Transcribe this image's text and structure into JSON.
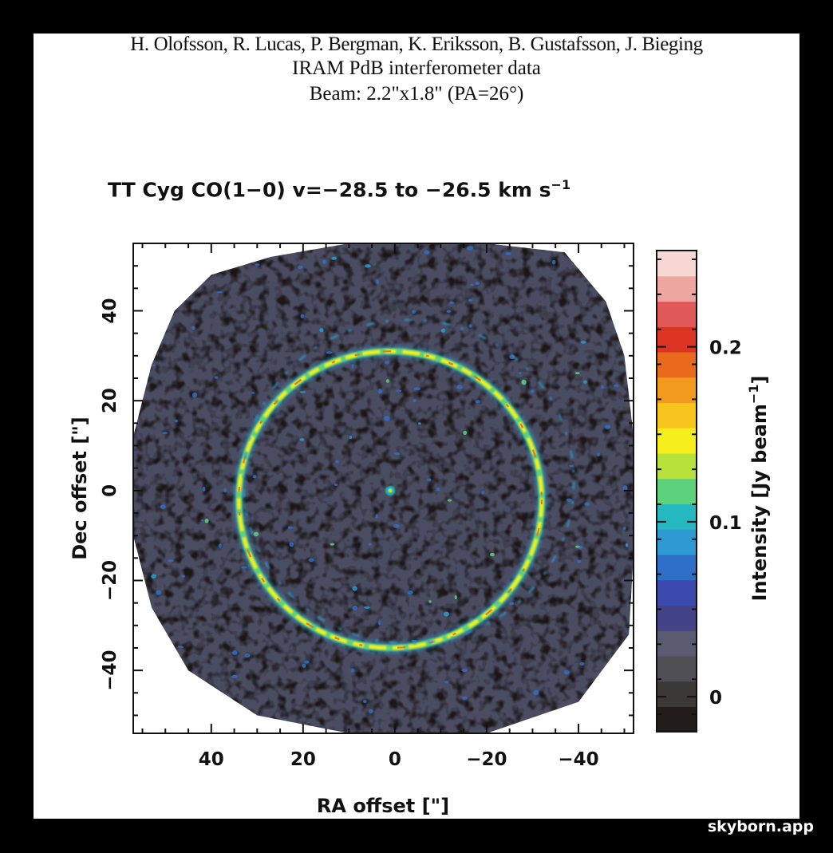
{
  "header": {
    "credit": "H. Olofsson, R. Lucas, P. Bergman, K. Eriksson, B. Gustafsson, J. Bieging",
    "instrument": "IRAM PdB interferometer data",
    "beam": "Beam: 2.2\"x1.8\" (PA=26°)"
  },
  "watermark": "skyborn.app",
  "chart_data": {
    "type": "heatmap",
    "title": "TT Cyg  CO(1−0)  v=−28.5 to −26.5 km s",
    "title_superscript": "−1",
    "xlabel": "RA offset  [\"]",
    "ylabel": "Dec offset  [\"]",
    "xlim": [
      57,
      -52
    ],
    "ylim": [
      -54,
      55
    ],
    "x_ticks": [
      40,
      20,
      0,
      -20,
      -40
    ],
    "x_tick_labels": [
      "40",
      "20",
      "0",
      "−20",
      "−40"
    ],
    "y_ticks": [
      40,
      20,
      0,
      -20,
      -40
    ],
    "y_tick_labels": [
      "40",
      "20",
      "0",
      "−20",
      "−40"
    ],
    "colorbar": {
      "label": "Intensity [Jy beam",
      "label_superscript": "−1",
      "label_suffix": "]",
      "range": [
        -0.02,
        0.255
      ],
      "ticks": [
        0,
        0.1,
        0.2
      ],
      "tick_labels": [
        "0",
        "0.1",
        "0.2"
      ],
      "colors": [
        "#221c1c",
        "#3b3838",
        "#4f4f55",
        "#5a5a70",
        "#434487",
        "#3c4ab0",
        "#2f6fc8",
        "#2d9ad2",
        "#25b8c0",
        "#5ed17c",
        "#b6e239",
        "#f7ef1b",
        "#f7c51c",
        "#f29a1e",
        "#ea6a1d",
        "#db3422",
        "#e05a5a",
        "#eea6a0",
        "#f7d8d2"
      ]
    },
    "features": [
      {
        "name": "shell",
        "center": [
          1,
          -2
        ],
        "radius": 33,
        "peak_intensity": 0.22
      },
      {
        "name": "central-star",
        "center": [
          1,
          0
        ],
        "peak_intensity": 0.12
      }
    ],
    "grid": false
  }
}
